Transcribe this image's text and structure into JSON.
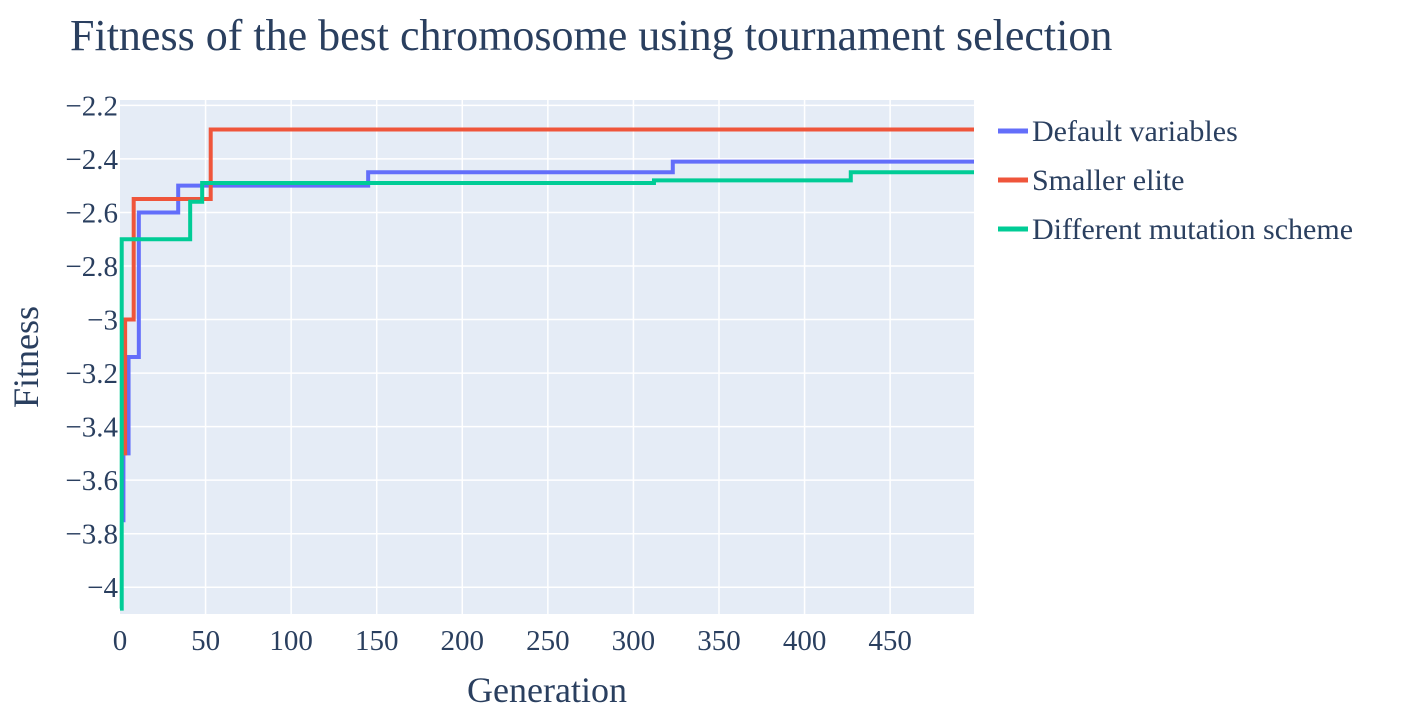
{
  "chart_data": {
    "type": "line",
    "title": "Fitness of the best chromosome using tournament selection",
    "xlabel": "Generation",
    "ylabel": "Fitness",
    "xlim": [
      0,
      499
    ],
    "ylim": [
      -4.1,
      -2.18
    ],
    "xticks": [
      0,
      50,
      100,
      150,
      200,
      250,
      300,
      350,
      400,
      450
    ],
    "xtick_labels": [
      "0",
      "50",
      "100",
      "150",
      "200",
      "250",
      "300",
      "350",
      "400",
      "450"
    ],
    "yticks": [
      -2.2,
      -2.4,
      -2.6,
      -2.8,
      -3,
      -3.2,
      -3.4,
      -3.6,
      -3.8,
      -4
    ],
    "ytick_labels": [
      "−2.2",
      "−2.4",
      "−2.6",
      "−2.8",
      "−3",
      "−3.2",
      "−3.4",
      "−3.6",
      "−3.8",
      "−4"
    ],
    "grid": true,
    "legend_position": "right",
    "plot_background": "#e5ecf6",
    "series": [
      {
        "name": "Default variables",
        "color": "#636efa",
        "step_points": [
          [
            0,
            -3.75
          ],
          [
            2,
            -3.5
          ],
          [
            5,
            -3.14
          ],
          [
            11,
            -2.6
          ],
          [
            34,
            -2.5
          ],
          [
            145,
            -2.45
          ],
          [
            323,
            -2.41
          ],
          [
            499,
            -2.41
          ]
        ]
      },
      {
        "name": "Smaller elite",
        "color": "#ef553b",
        "step_points": [
          [
            0,
            -3.5
          ],
          [
            3,
            -3.0
          ],
          [
            8,
            -2.55
          ],
          [
            53,
            -2.29
          ],
          [
            499,
            -2.29
          ]
        ]
      },
      {
        "name": "Different mutation scheme",
        "color": "#00cc96",
        "step_points": [
          [
            0,
            -4.08
          ],
          [
            1,
            -2.7
          ],
          [
            41,
            -2.56
          ],
          [
            48,
            -2.49
          ],
          [
            312,
            -2.48
          ],
          [
            427,
            -2.45
          ],
          [
            499,
            -2.45
          ]
        ]
      }
    ]
  }
}
